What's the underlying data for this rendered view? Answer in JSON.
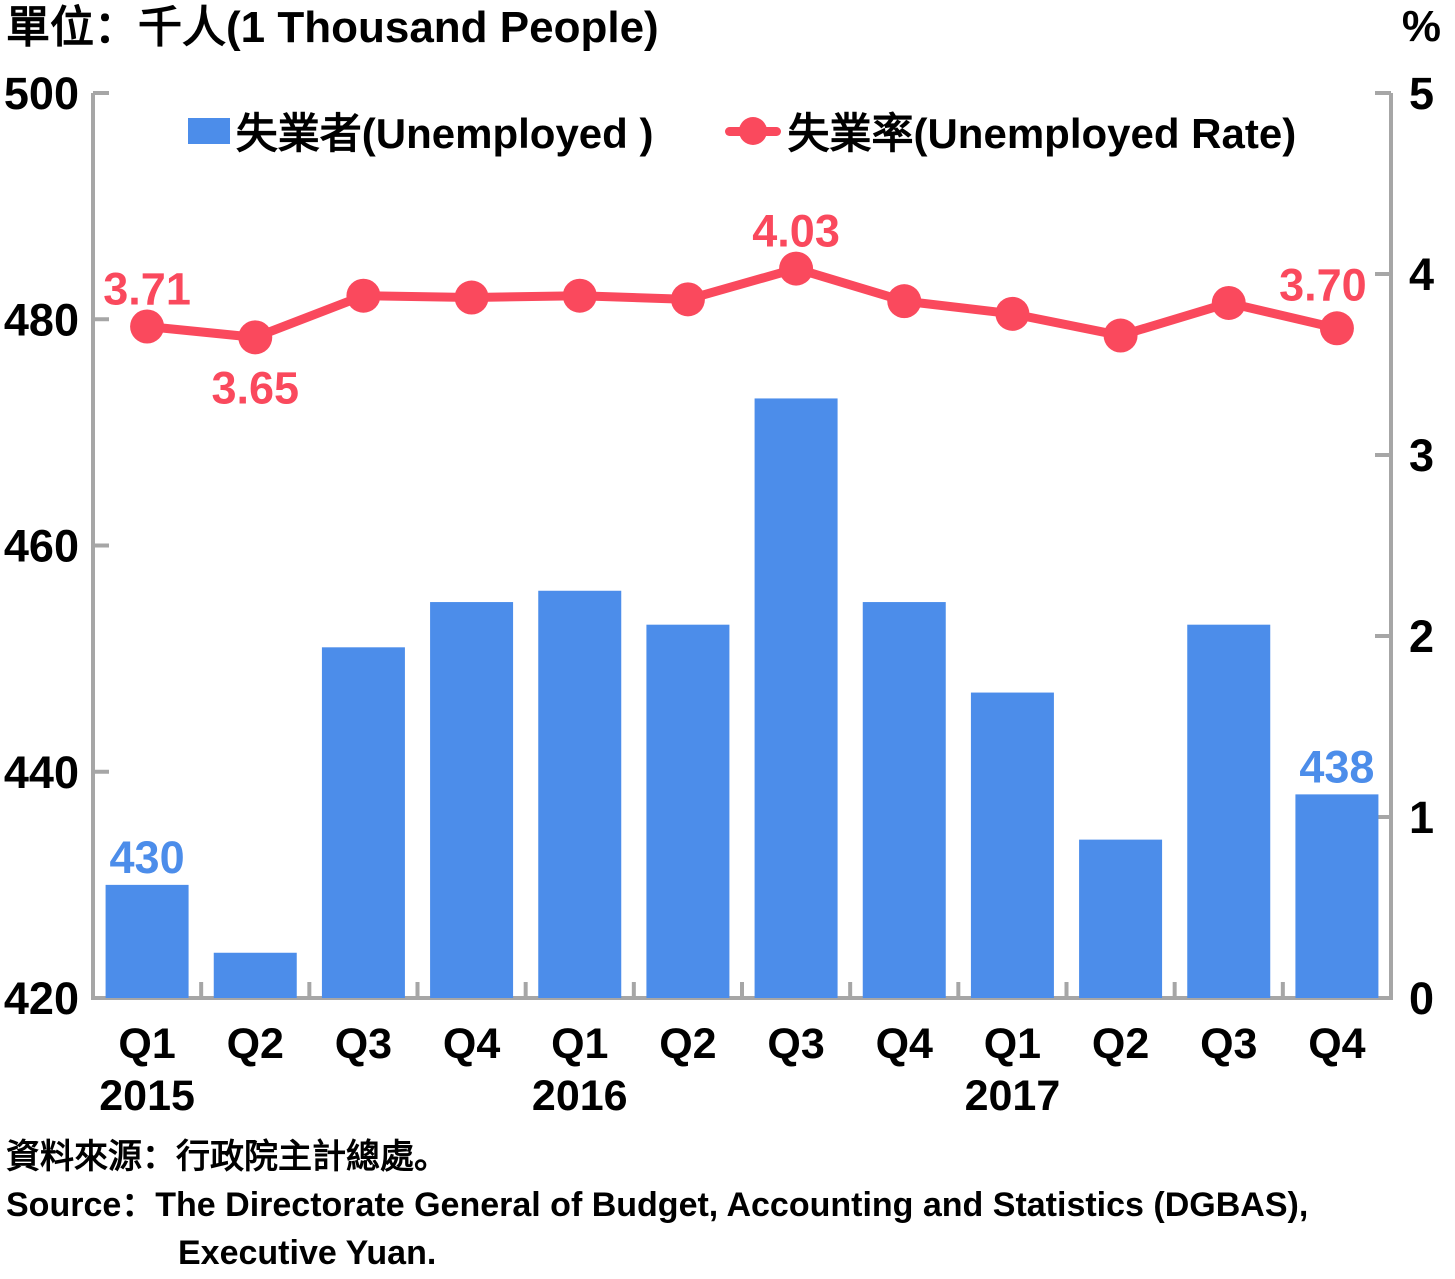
{
  "header": {
    "title": "單位：千人(1 Thousand People)",
    "right_unit": "%"
  },
  "legend": {
    "items": [
      {
        "label": "失業者(Unemployed )",
        "marker": "bar-swatch"
      },
      {
        "label": "失業率(Unemployed Rate)",
        "marker": "line-dot"
      }
    ]
  },
  "source": {
    "line1": "資料來源：行政院主計總處。",
    "line2": "Source：The Directorate General of Budget, Accounting and Statistics (DGBAS),",
    "line3": "Executive Yuan."
  },
  "colors": {
    "bar": "#4C8DEA",
    "line": "#FA495D",
    "axis": "#A6A6A6",
    "text": "#000000"
  },
  "chart_data": {
    "type": "bar",
    "title": "",
    "categories": [
      "Q1",
      "Q2",
      "Q3",
      "Q4",
      "Q1",
      "Q2",
      "Q3",
      "Q4",
      "Q1",
      "Q2",
      "Q3",
      "Q4"
    ],
    "year_labels": [
      {
        "text": "2015",
        "index": 0
      },
      {
        "text": "2016",
        "index": 4
      },
      {
        "text": "2017",
        "index": 8
      }
    ],
    "series": [
      {
        "name": "失業者(Unemployed )",
        "chart": "bar",
        "axis": "left",
        "unit": "thousand people",
        "values": [
          430,
          424,
          451,
          455,
          456,
          453,
          473,
          455,
          447,
          434,
          453,
          438
        ],
        "labeled_points": [
          {
            "index": 0,
            "text": "430",
            "placement": "above"
          },
          {
            "index": 11,
            "text": "438",
            "placement": "above"
          }
        ]
      },
      {
        "name": "失業率(Unemployed Rate)",
        "chart": "line",
        "axis": "right",
        "unit": "%",
        "values": [
          3.71,
          3.65,
          3.88,
          3.87,
          3.88,
          3.86,
          4.03,
          3.85,
          3.78,
          3.66,
          3.84,
          3.7
        ],
        "labeled_points": [
          {
            "index": 0,
            "text": "3.71",
            "placement": "above"
          },
          {
            "index": 1,
            "text": "3.65",
            "placement": "below"
          },
          {
            "index": 6,
            "text": "4.03",
            "placement": "above"
          },
          {
            "index": 11,
            "text": "3.70",
            "placement": "above-left"
          }
        ]
      }
    ],
    "left_axis": {
      "unit": "千人 (1 Thousand People)",
      "min": 420,
      "max": 500,
      "ticks": [
        420,
        440,
        460,
        480,
        500
      ]
    },
    "right_axis": {
      "unit": "%",
      "min": 0,
      "max": 5,
      "ticks": [
        0,
        1,
        2,
        3,
        4,
        5
      ]
    },
    "grid": false,
    "legend_position": "top-center"
  }
}
